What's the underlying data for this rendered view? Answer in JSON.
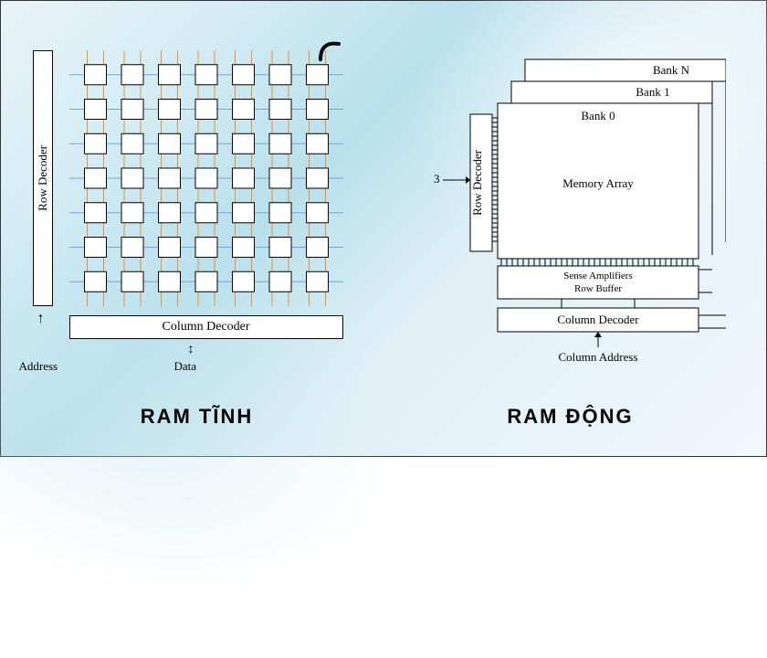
{
  "left": {
    "caption": "RAM TĨNH",
    "row_decoder": "Row Decoder",
    "column_decoder": "Column Decoder",
    "address": "Address",
    "data": "Data",
    "grid": {
      "rows": 7,
      "cols": 7
    },
    "colors": {
      "cell_border": "#000000",
      "cell_fill": "#ffffff",
      "h_line": "#6fa8dc",
      "v_line": "#e69138"
    }
  },
  "right": {
    "caption": "RAM ĐỘNG",
    "row_decoder": "Row Decoder",
    "bank_n": "Bank N",
    "bank_1": "Bank 1",
    "bank_0": "Bank 0",
    "memory_array": "Memory Array",
    "sense_amp": "Sense Amplifiers",
    "row_buffer": "Row Buffer",
    "column_decoder": "Column Decoder",
    "column_address": "Column Address",
    "colors": {
      "box_border": "#000000",
      "box_fill": "#ffffff"
    }
  },
  "style": {
    "caption_fontsize": 22,
    "label_fontsize": 13,
    "background_color": "#d4ecf4"
  }
}
